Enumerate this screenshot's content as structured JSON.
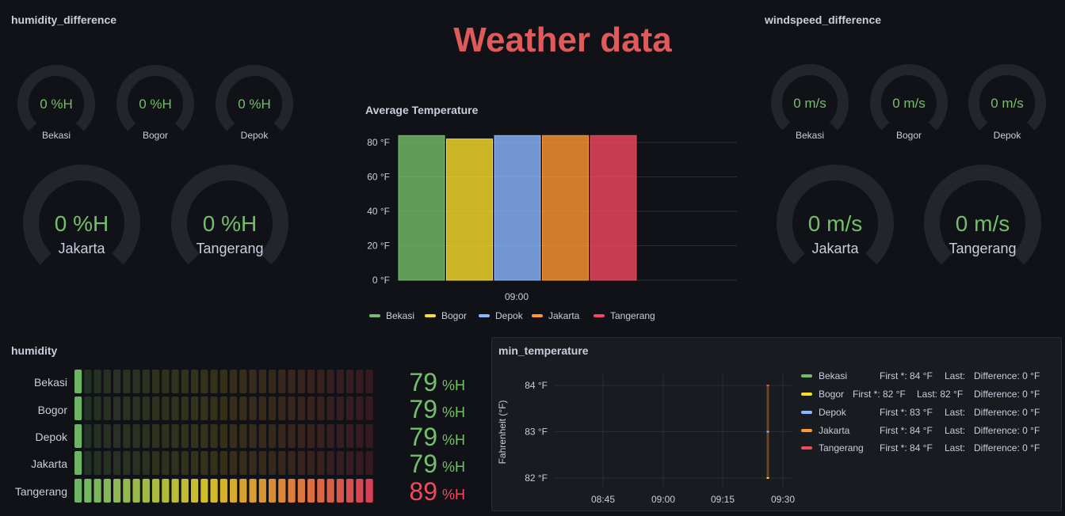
{
  "dashboard": {
    "title": "Weather data"
  },
  "humidity_difference": {
    "title": "humidity_difference",
    "gauges": [
      {
        "value": "0 %H",
        "label": "Bekasi"
      },
      {
        "value": "0 %H",
        "label": "Bogor"
      },
      {
        "value": "0 %H",
        "label": "Depok"
      },
      {
        "value": "0 %H",
        "label": "Jakarta"
      },
      {
        "value": "0 %H",
        "label": "Tangerang"
      }
    ]
  },
  "windspeed_difference": {
    "title": "windspeed_difference",
    "gauges": [
      {
        "value": "0 m/s",
        "label": "Bekasi"
      },
      {
        "value": "0 m/s",
        "label": "Bogor"
      },
      {
        "value": "0 m/s",
        "label": "Depok"
      },
      {
        "value": "0 m/s",
        "label": "Jakarta"
      },
      {
        "value": "0 m/s",
        "label": "Tangerang"
      }
    ]
  },
  "avg_temperature": {
    "title": "Average Temperature",
    "x_tick": "09:00",
    "y_ticks": [
      "0 °F",
      "20 °F",
      "40 °F",
      "60 °F",
      "80 °F"
    ],
    "legend": [
      "Bekasi",
      "Bogor",
      "Depok",
      "Jakarta",
      "Tangerang"
    ]
  },
  "humidity": {
    "title": "humidity",
    "rows": [
      {
        "label": "Bekasi",
        "value": "79",
        "unit": "%H",
        "fraction": 0.035,
        "color": "#73bf69"
      },
      {
        "label": "Bogor",
        "value": "79",
        "unit": "%H",
        "fraction": 0.035,
        "color": "#73bf69"
      },
      {
        "label": "Depok",
        "value": "79",
        "unit": "%H",
        "fraction": 0.035,
        "color": "#73bf69"
      },
      {
        "label": "Jakarta",
        "value": "79",
        "unit": "%H",
        "fraction": 0.035,
        "color": "#73bf69"
      },
      {
        "label": "Tangerang",
        "value": "89",
        "unit": "%H",
        "fraction": 1.0,
        "color": "#f2495c"
      }
    ]
  },
  "min_temperature": {
    "title": "min_temperature",
    "y_axis_label": "Fahrenheit (°F)",
    "y_ticks": [
      "82 °F",
      "83 °F",
      "84 °F"
    ],
    "x_ticks": [
      "08:45",
      "09:00",
      "09:15",
      "09:30"
    ],
    "legend": [
      {
        "name": "Bekasi",
        "first_label": "First *:",
        "first": "84 °F",
        "last_label": "Last:",
        "last": "",
        "diff_label": "Difference:",
        "diff": "0 °F",
        "color": "#73bf69"
      },
      {
        "name": "Bogor",
        "first_label": "First *:",
        "first": "82 °F",
        "last_label": "Last:",
        "last": "82 °F",
        "diff_label": "Difference:",
        "diff": "0 °F",
        "color": "#fade2a"
      },
      {
        "name": "Depok",
        "first_label": "First *:",
        "first": "83 °F",
        "last_label": "Last:",
        "last": "",
        "diff_label": "Difference:",
        "diff": "0 °F",
        "color": "#8ab8ff"
      },
      {
        "name": "Jakarta",
        "first_label": "First *:",
        "first": "84 °F",
        "last_label": "Last:",
        "last": "",
        "diff_label": "Difference:",
        "diff": "0 °F",
        "color": "#ff9830"
      },
      {
        "name": "Tangerang",
        "first_label": "First *:",
        "first": "84 °F",
        "last_label": "Last:",
        "last": "",
        "diff_label": "Difference:",
        "diff": "0 °F",
        "color": "#f2495c"
      }
    ]
  },
  "colors": {
    "background": "#111217",
    "panel": "#181b1f",
    "gauge_track": "#22252b",
    "value_green": "#73bf69",
    "value_red": "#f2495c",
    "title_red": "#e05a5a"
  },
  "chart_data": [
    {
      "type": "bar",
      "title": "Average Temperature",
      "categories": [
        "09:00"
      ],
      "series": [
        {
          "name": "Bekasi",
          "values": [
            84
          ],
          "color": "#73bf69"
        },
        {
          "name": "Bogor",
          "values": [
            82
          ],
          "color": "#fade2a"
        },
        {
          "name": "Depok",
          "values": [
            84
          ],
          "color": "#8ab8ff"
        },
        {
          "name": "Jakarta",
          "values": [
            84
          ],
          "color": "#ff9830"
        },
        {
          "name": "Tangerang",
          "values": [
            84
          ],
          "color": "#f2495c"
        }
      ],
      "ylim": [
        0,
        80
      ],
      "y_ticks": [
        0,
        20,
        40,
        60,
        80
      ],
      "grid": true,
      "legend": "bottom"
    },
    {
      "type": "line",
      "title": "min_temperature",
      "ylabel": "Fahrenheit (°F)",
      "ylim": [
        82,
        84
      ],
      "x_ticks": [
        "08:45",
        "09:00",
        "09:15",
        "09:30"
      ],
      "series": [
        {
          "name": "Bekasi",
          "x": [
            "09:25"
          ],
          "values": [
            84
          ]
        },
        {
          "name": "Bogor",
          "x": [
            "09:25"
          ],
          "values": [
            82
          ]
        },
        {
          "name": "Depok",
          "x": [
            "09:25"
          ],
          "values": [
            83
          ]
        },
        {
          "name": "Jakarta",
          "x": [
            "09:25"
          ],
          "values": [
            84
          ]
        },
        {
          "name": "Tangerang",
          "x": [
            "09:25"
          ],
          "values": [
            84
          ]
        }
      ],
      "grid": true,
      "legend": "right"
    }
  ]
}
